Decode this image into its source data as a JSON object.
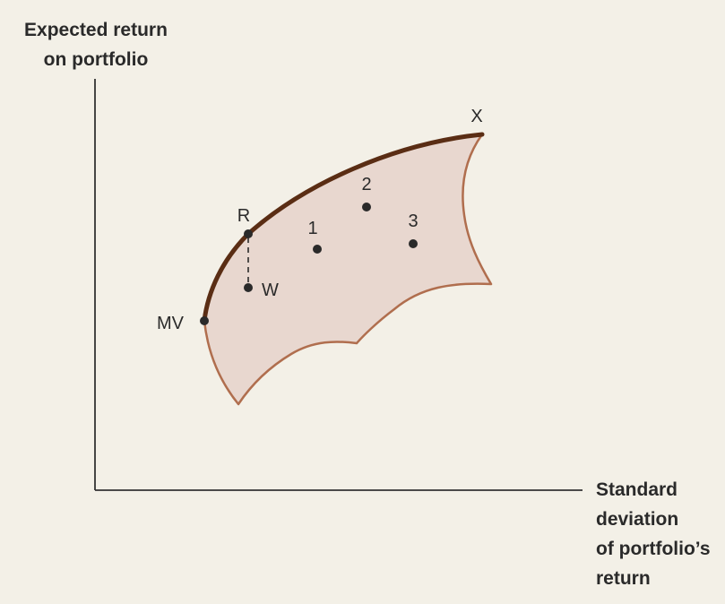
{
  "y_axis_title": [
    "Expected return",
    "on portfolio"
  ],
  "x_axis_title": [
    "Standard",
    "deviation",
    "of portfolio’s",
    "return"
  ],
  "points": {
    "MV": "MV",
    "R": "R",
    "W": "W",
    "p1": "1",
    "p2": "2",
    "p3": "3",
    "X": "X"
  },
  "colors": {
    "background": "#f3f0e7",
    "region_fill": "#e8d7cf",
    "region_outline": "#b06e4e",
    "frontier": "#5a2d14",
    "axis": "#333333",
    "dot": "#2a2a2a"
  }
}
